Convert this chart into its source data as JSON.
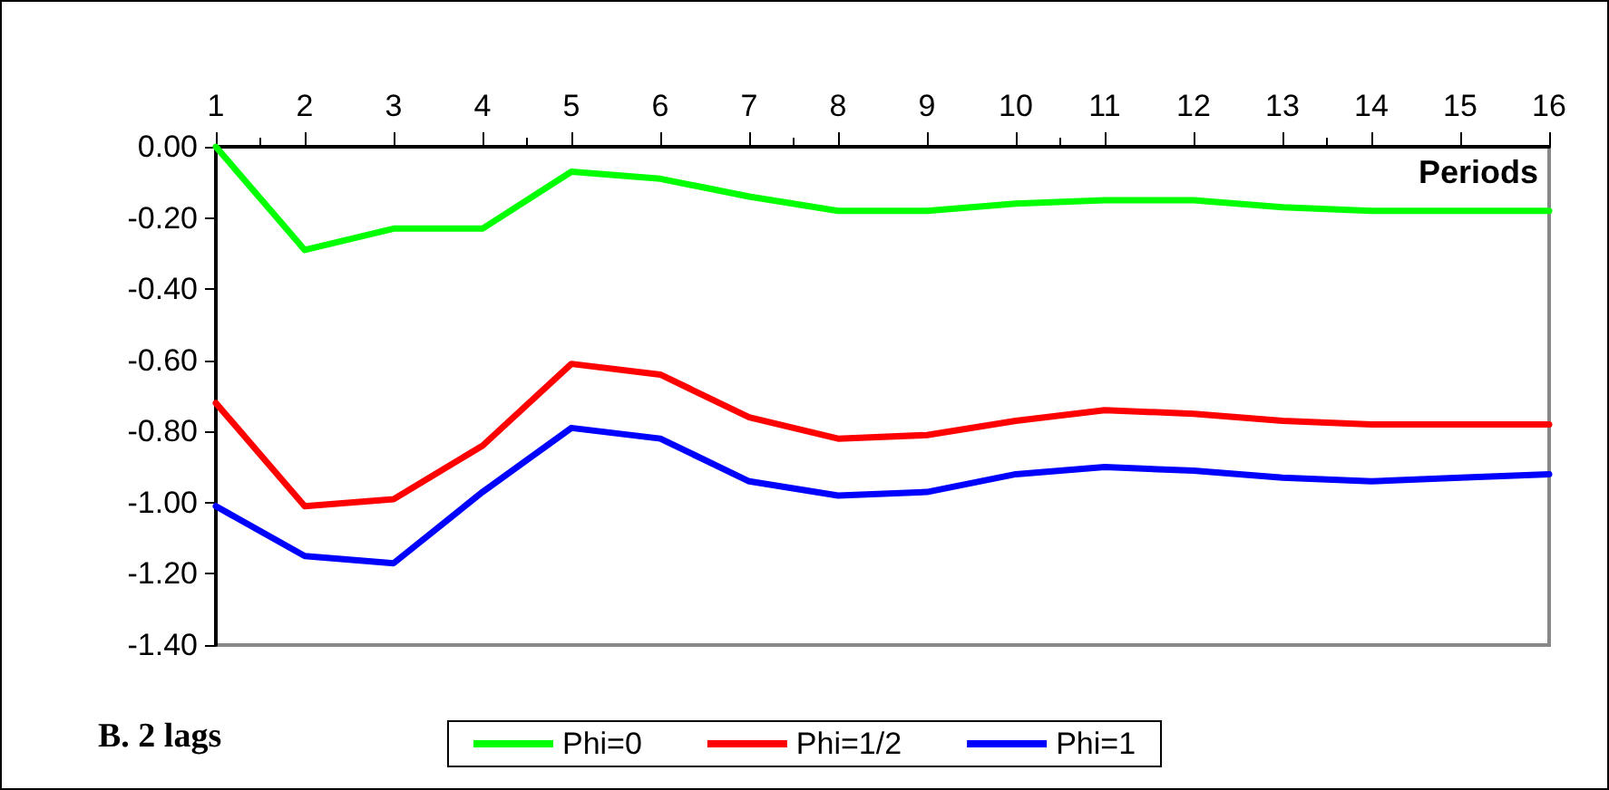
{
  "chart_data": {
    "type": "line",
    "title": "B. 2 lags",
    "xlabel": "Periods",
    "x": [
      1,
      2,
      3,
      4,
      5,
      6,
      7,
      8,
      9,
      10,
      11,
      12,
      13,
      14,
      15,
      16
    ],
    "series": [
      {
        "name": "Phi=0",
        "color": "#00ff00",
        "values": [
          0.0,
          -0.29,
          -0.23,
          -0.23,
          -0.07,
          -0.09,
          -0.14,
          -0.18,
          -0.18,
          -0.16,
          -0.15,
          -0.15,
          -0.17,
          -0.18,
          -0.18,
          -0.18
        ]
      },
      {
        "name": "Phi=1/2",
        "color": "#ff0000",
        "values": [
          -0.72,
          -1.01,
          -0.99,
          -0.84,
          -0.61,
          -0.64,
          -0.76,
          -0.82,
          -0.81,
          -0.77,
          -0.74,
          -0.75,
          -0.77,
          -0.78,
          -0.78,
          -0.78
        ]
      },
      {
        "name": "Phi=1",
        "color": "#0000ff",
        "values": [
          -1.01,
          -1.15,
          -1.17,
          -0.97,
          -0.79,
          -0.82,
          -0.94,
          -0.98,
          -0.97,
          -0.92,
          -0.9,
          -0.91,
          -0.93,
          -0.94,
          -0.93,
          -0.92
        ]
      }
    ],
    "xlim": [
      1,
      16
    ],
    "xticks": [
      1,
      2,
      3,
      4,
      5,
      6,
      7,
      8,
      9,
      10,
      11,
      12,
      13,
      14,
      15,
      16
    ],
    "ylim": [
      -1.4,
      0
    ],
    "yticks": [
      {
        "value": -1.4,
        "label": "-1.40"
      },
      {
        "value": -1.2,
        "label": "-1.20"
      },
      {
        "value": -1.0,
        "label": "-1.00"
      },
      {
        "value": -0.8,
        "label": "-0.80"
      },
      {
        "value": -0.6,
        "label": "-0.60"
      },
      {
        "value": -0.4,
        "label": "-0.40"
      },
      {
        "value": -0.2,
        "label": "-0.20"
      },
      {
        "value": 0,
        "label": "0.00"
      }
    ],
    "grid": false,
    "legend": "bottom",
    "marker": "none",
    "line_style": "solid"
  }
}
